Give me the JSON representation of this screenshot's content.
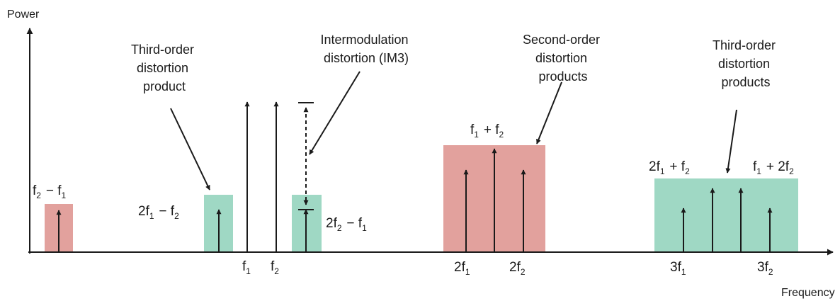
{
  "axes": {
    "y_label": "Power",
    "x_label": "Frequency"
  },
  "callouts": {
    "third_order_product": [
      "Third-order",
      "distortion",
      "product"
    ],
    "im3": [
      "Intermodulation",
      "distortion (IM3)"
    ],
    "second_order_products": [
      "Second-order",
      "distortion",
      "products"
    ],
    "third_order_products": [
      "Third-order",
      "distortion",
      "products"
    ]
  },
  "labels": {
    "f2_minus_f1": "f2 − f1",
    "two_f1_minus_f2": "2f1 − f2",
    "two_f2_minus_f1": "2f2 − f1",
    "f1": "f1",
    "f2": "f2",
    "f1_plus_f2": "f1 + f2",
    "two_f1": "2f1",
    "two_f2": "2f2",
    "two_f1_plus_f2": "2f1 + f2",
    "f1_plus_two_f2": "f1 + 2f2",
    "three_f1": "3f1",
    "three_f2": "3f2"
  },
  "colors": {
    "second_order_fill": "#e2a19d",
    "third_order_fill": "#9fd8c4",
    "line": "#1a1a1a"
  }
}
